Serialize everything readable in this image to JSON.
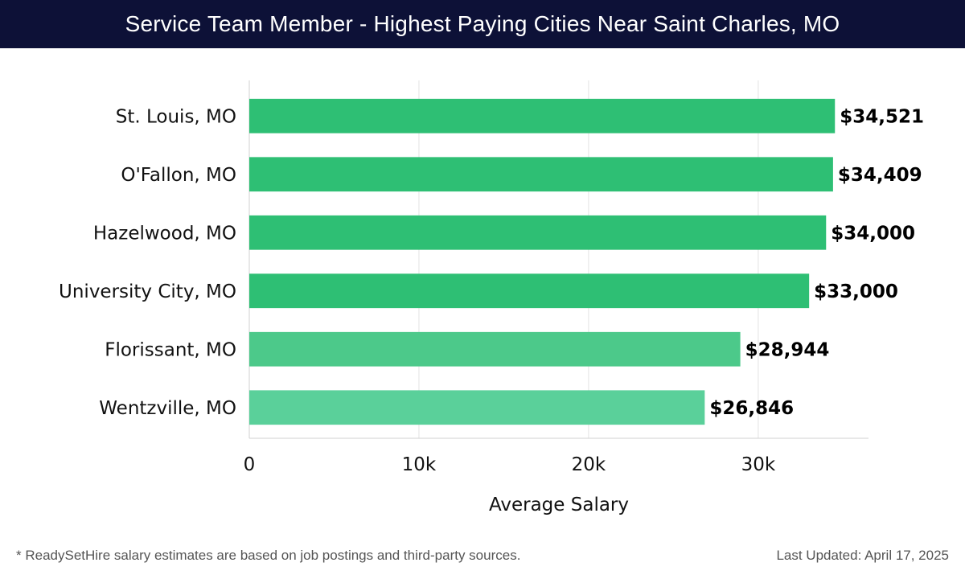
{
  "header": {
    "title": "Service Team Member - Highest Paying Cities Near Saint Charles, MO"
  },
  "chart_data": {
    "type": "bar",
    "orientation": "horizontal",
    "title": "Service Team Member - Highest Paying Cities Near Saint Charles, MO",
    "categories": [
      "St. Louis, MO",
      "O'Fallon, MO",
      "Hazelwood, MO",
      "University City, MO",
      "Florissant, MO",
      "Wentzville, MO"
    ],
    "values": [
      34521,
      34409,
      34000,
      33000,
      28944,
      26846
    ],
    "value_labels": [
      "$34,521",
      "$34,409",
      "$34,000",
      "$33,000",
      "$28,944",
      "$26,846"
    ],
    "bar_colors": [
      "#2ebf74",
      "#2ebf74",
      "#2ebf74",
      "#2ebf74",
      "#4cc98a",
      "#5ad09a"
    ],
    "xlabel": "Average Salary",
    "ylabel": "",
    "xlim": [
      0,
      36500
    ],
    "xticks": [
      0,
      10000,
      20000,
      30000
    ],
    "xtick_labels": [
      "0",
      "10k",
      "20k",
      "30k"
    ],
    "grid": true
  },
  "footer": {
    "note": "* ReadySetHire salary estimates are based on job postings and third-party sources.",
    "updated": "Last Updated: April 17, 2025"
  }
}
